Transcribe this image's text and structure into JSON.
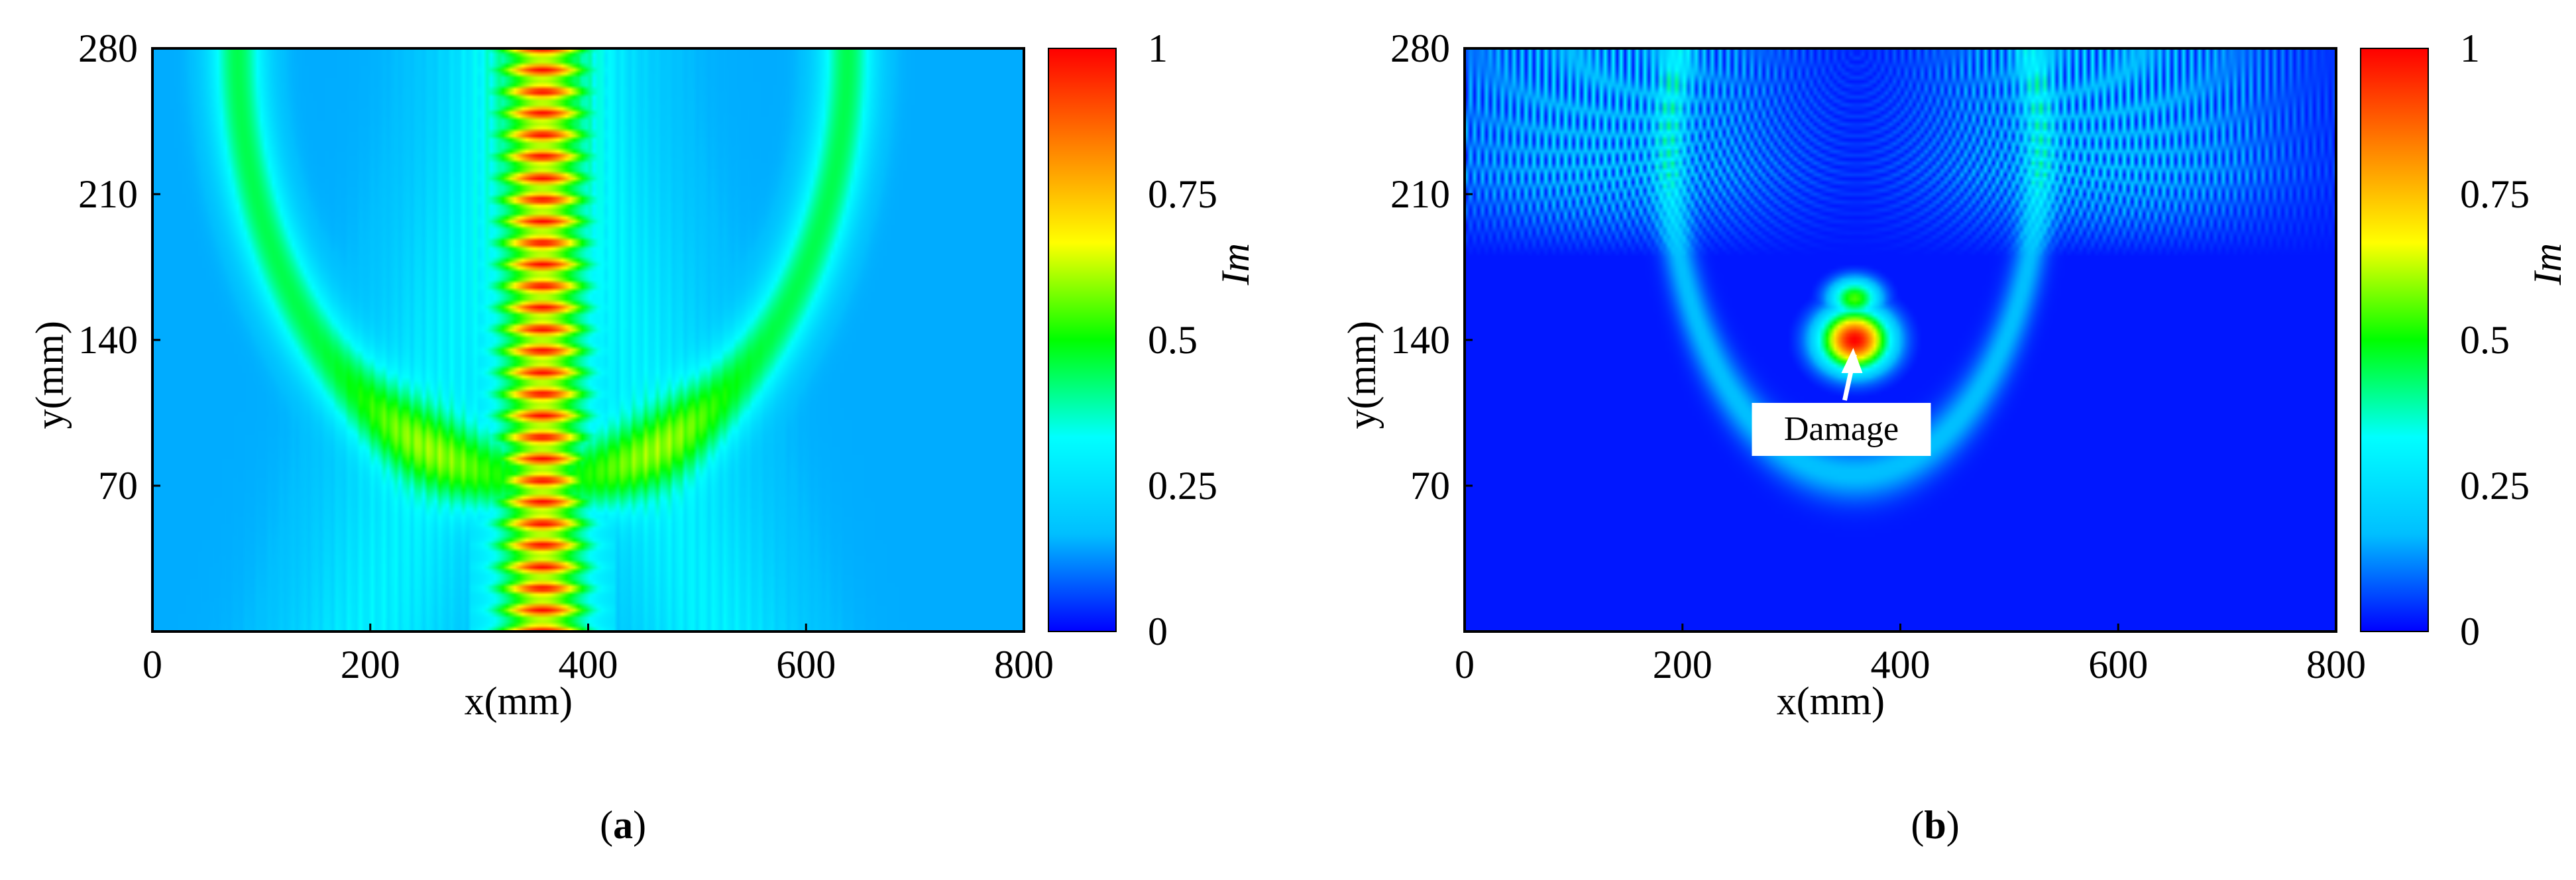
{
  "chart_data": [
    {
      "type": "heatmap",
      "panel_label": "a",
      "title": "",
      "xlabel": "x(mm)",
      "ylabel": "y(mm)",
      "xlim": [
        0,
        800
      ],
      "ylim": [
        0,
        280
      ],
      "xticks": [
        0,
        200,
        400,
        600,
        800
      ],
      "yticks": [
        70,
        140,
        210,
        280
      ],
      "colorbar": {
        "label": "Im",
        "range": [
          0,
          1
        ],
        "ticks": [
          "0",
          "0.25",
          "0.5",
          "0.75",
          "1"
        ],
        "colormap": [
          "#0000ff",
          "#00bfff",
          "#00ffff",
          "#00ff00",
          "#ffff00",
          "#ff8000",
          "#ff0000"
        ]
      },
      "background_level": 0.15,
      "features": [
        {
          "kind": "vertical_beam",
          "x_center": 358,
          "width_mm": 85,
          "level": 0.62,
          "peak_level": 1.0,
          "peak_count": 27
        },
        {
          "kind": "arc",
          "center_x": 358,
          "center_y": 280,
          "radius_mm": 280,
          "level": 0.3
        },
        {
          "kind": "diagonal_bands",
          "level": 0.35
        }
      ],
      "annotation": ""
    },
    {
      "type": "heatmap",
      "panel_label": "b",
      "title": "",
      "xlabel": "x(mm)",
      "ylabel": "y(mm)",
      "xlim": [
        0,
        800
      ],
      "ylim": [
        0,
        280
      ],
      "xticks": [
        0,
        200,
        400,
        600,
        800
      ],
      "yticks": [
        70,
        140,
        210,
        280
      ],
      "colorbar": {
        "label": "Im",
        "range": [
          0,
          1
        ],
        "ticks": [
          "0",
          "0.25",
          "0.5",
          "0.75",
          "1"
        ],
        "colormap": [
          "#0000ff",
          "#00bfff",
          "#00ffff",
          "#00ff00",
          "#ffff00",
          "#ff8000",
          "#ff0000"
        ]
      },
      "background_level": 0.02,
      "features": [
        {
          "kind": "fan_arcs",
          "center_x": 360,
          "center_y": 280,
          "level": 0.3,
          "count": 28
        },
        {
          "kind": "hotspot",
          "x": 358,
          "y": 140,
          "level": 1.0
        },
        {
          "kind": "hotspot_upper",
          "x": 358,
          "y": 160,
          "level": 0.55
        },
        {
          "kind": "arc",
          "center_x": 358,
          "center_y": 230,
          "radius_mm": 170,
          "level": 0.25
        }
      ],
      "annotation": "Damage",
      "annotation_point": {
        "x": 358,
        "y": 140
      }
    }
  ]
}
